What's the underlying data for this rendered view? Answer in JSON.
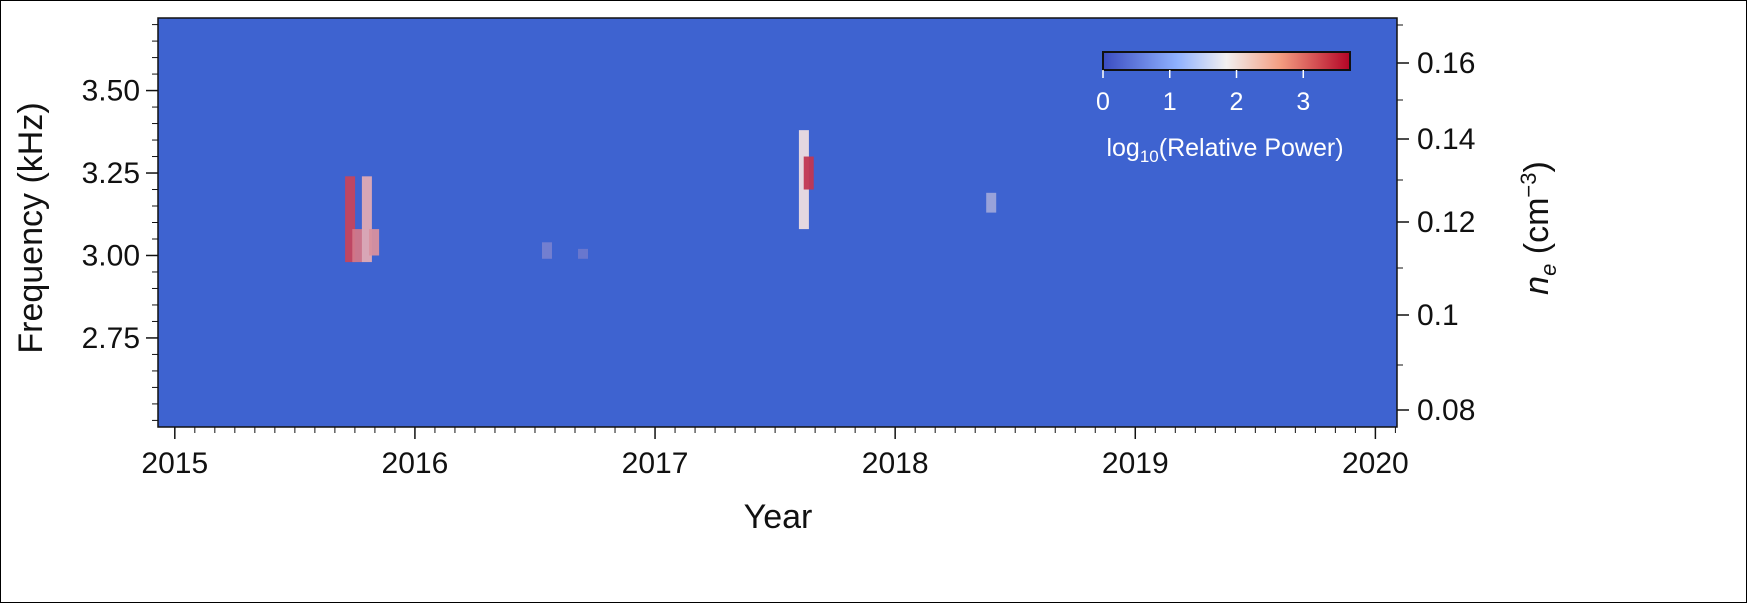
{
  "chart_data": {
    "type": "heatmap",
    "title": "",
    "xlabel": "Year",
    "ylabel": "Frequency (kHz)",
    "ylabel_right_main": "n",
    "ylabel_right_sub": "e",
    "ylabel_right_unit_open": " (cm",
    "ylabel_right_unit_exp": "−3",
    "ylabel_right_unit_close": ")",
    "xlim": [
      2014.93,
      2020.09
    ],
    "ylim": [
      2.48,
      3.72
    ],
    "x_ticks": [
      2015,
      2016,
      2017,
      2018,
      2019,
      2020
    ],
    "x_tick_labels": [
      "2015",
      "2016",
      "2017",
      "2018",
      "2019",
      "2020"
    ],
    "y_ticks": [
      2.75,
      3.0,
      3.25,
      3.5
    ],
    "y_tick_labels": [
      "2.75",
      "3.00",
      "3.25",
      "3.50"
    ],
    "y_right_ticks": [
      0.08,
      0.1,
      0.12,
      0.14,
      0.16
    ],
    "y_right_tick_labels": [
      "0.08",
      "0.1",
      "0.12",
      "0.14",
      "0.16"
    ],
    "colorbar": {
      "label_main": "log",
      "label_sub": "10",
      "label_rest": "(Relative Power)",
      "ticks": [
        0,
        1,
        2,
        3
      ],
      "tick_labels": [
        "0",
        "1",
        "2",
        "3"
      ],
      "range": [
        0,
        3.7
      ],
      "colors": [
        "#3a5fcd",
        "#f4f4f4",
        "#b40426"
      ],
      "position": "top-right"
    },
    "background_color": "#3e63d0",
    "features": [
      {
        "x": 2015.73,
        "y": [
          2.98,
          3.24
        ],
        "value": 3.2
      },
      {
        "x": 2015.76,
        "y": [
          2.98,
          3.08
        ],
        "value": 2.8
      },
      {
        "x": 2015.8,
        "y": [
          2.98,
          3.24
        ],
        "value": 2.4
      },
      {
        "x": 2015.83,
        "y": [
          3.0,
          3.08
        ],
        "value": 2.6
      },
      {
        "x": 2016.55,
        "y": [
          2.99,
          3.04
        ],
        "value": 0.6
      },
      {
        "x": 2016.7,
        "y": [
          2.99,
          3.02
        ],
        "value": 0.5
      },
      {
        "x": 2017.62,
        "y": [
          3.08,
          3.38
        ],
        "value": 2.0
      },
      {
        "x": 2017.64,
        "y": [
          3.2,
          3.3
        ],
        "value": 3.3
      },
      {
        "x": 2018.4,
        "y": [
          3.13,
          3.19
        ],
        "value": 1.0
      }
    ]
  }
}
